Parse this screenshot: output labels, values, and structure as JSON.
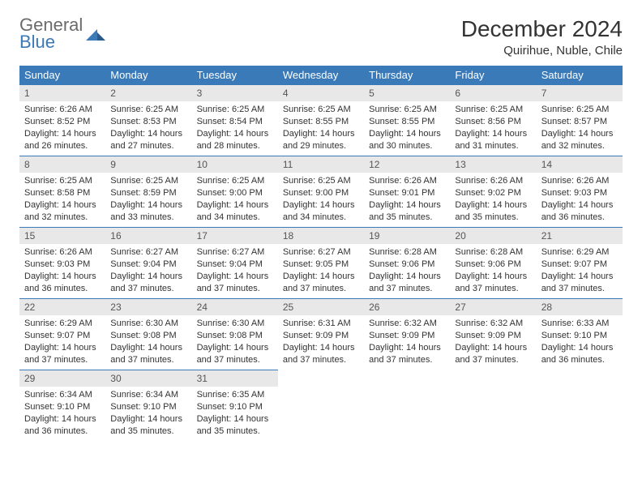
{
  "logo": {
    "general": "General",
    "blue": "Blue"
  },
  "title": "December 2024",
  "location": "Quirihue, Nuble, Chile",
  "colors": {
    "header_bg": "#3a7ab8",
    "header_text": "#ffffff",
    "daynum_bg": "#e8e8e8",
    "border": "#3a7ab8",
    "logo_gray": "#6b6b6b",
    "logo_blue": "#3a7ab8"
  },
  "weekdays": [
    "Sunday",
    "Monday",
    "Tuesday",
    "Wednesday",
    "Thursday",
    "Friday",
    "Saturday"
  ],
  "days": [
    {
      "n": 1,
      "sunrise": "6:26 AM",
      "sunset": "8:52 PM",
      "daylight": "14 hours and 26 minutes."
    },
    {
      "n": 2,
      "sunrise": "6:25 AM",
      "sunset": "8:53 PM",
      "daylight": "14 hours and 27 minutes."
    },
    {
      "n": 3,
      "sunrise": "6:25 AM",
      "sunset": "8:54 PM",
      "daylight": "14 hours and 28 minutes."
    },
    {
      "n": 4,
      "sunrise": "6:25 AM",
      "sunset": "8:55 PM",
      "daylight": "14 hours and 29 minutes."
    },
    {
      "n": 5,
      "sunrise": "6:25 AM",
      "sunset": "8:55 PM",
      "daylight": "14 hours and 30 minutes."
    },
    {
      "n": 6,
      "sunrise": "6:25 AM",
      "sunset": "8:56 PM",
      "daylight": "14 hours and 31 minutes."
    },
    {
      "n": 7,
      "sunrise": "6:25 AM",
      "sunset": "8:57 PM",
      "daylight": "14 hours and 32 minutes."
    },
    {
      "n": 8,
      "sunrise": "6:25 AM",
      "sunset": "8:58 PM",
      "daylight": "14 hours and 32 minutes."
    },
    {
      "n": 9,
      "sunrise": "6:25 AM",
      "sunset": "8:59 PM",
      "daylight": "14 hours and 33 minutes."
    },
    {
      "n": 10,
      "sunrise": "6:25 AM",
      "sunset": "9:00 PM",
      "daylight": "14 hours and 34 minutes."
    },
    {
      "n": 11,
      "sunrise": "6:25 AM",
      "sunset": "9:00 PM",
      "daylight": "14 hours and 34 minutes."
    },
    {
      "n": 12,
      "sunrise": "6:26 AM",
      "sunset": "9:01 PM",
      "daylight": "14 hours and 35 minutes."
    },
    {
      "n": 13,
      "sunrise": "6:26 AM",
      "sunset": "9:02 PM",
      "daylight": "14 hours and 35 minutes."
    },
    {
      "n": 14,
      "sunrise": "6:26 AM",
      "sunset": "9:03 PM",
      "daylight": "14 hours and 36 minutes."
    },
    {
      "n": 15,
      "sunrise": "6:26 AM",
      "sunset": "9:03 PM",
      "daylight": "14 hours and 36 minutes."
    },
    {
      "n": 16,
      "sunrise": "6:27 AM",
      "sunset": "9:04 PM",
      "daylight": "14 hours and 37 minutes."
    },
    {
      "n": 17,
      "sunrise": "6:27 AM",
      "sunset": "9:04 PM",
      "daylight": "14 hours and 37 minutes."
    },
    {
      "n": 18,
      "sunrise": "6:27 AM",
      "sunset": "9:05 PM",
      "daylight": "14 hours and 37 minutes."
    },
    {
      "n": 19,
      "sunrise": "6:28 AM",
      "sunset": "9:06 PM",
      "daylight": "14 hours and 37 minutes."
    },
    {
      "n": 20,
      "sunrise": "6:28 AM",
      "sunset": "9:06 PM",
      "daylight": "14 hours and 37 minutes."
    },
    {
      "n": 21,
      "sunrise": "6:29 AM",
      "sunset": "9:07 PM",
      "daylight": "14 hours and 37 minutes."
    },
    {
      "n": 22,
      "sunrise": "6:29 AM",
      "sunset": "9:07 PM",
      "daylight": "14 hours and 37 minutes."
    },
    {
      "n": 23,
      "sunrise": "6:30 AM",
      "sunset": "9:08 PM",
      "daylight": "14 hours and 37 minutes."
    },
    {
      "n": 24,
      "sunrise": "6:30 AM",
      "sunset": "9:08 PM",
      "daylight": "14 hours and 37 minutes."
    },
    {
      "n": 25,
      "sunrise": "6:31 AM",
      "sunset": "9:09 PM",
      "daylight": "14 hours and 37 minutes."
    },
    {
      "n": 26,
      "sunrise": "6:32 AM",
      "sunset": "9:09 PM",
      "daylight": "14 hours and 37 minutes."
    },
    {
      "n": 27,
      "sunrise": "6:32 AM",
      "sunset": "9:09 PM",
      "daylight": "14 hours and 37 minutes."
    },
    {
      "n": 28,
      "sunrise": "6:33 AM",
      "sunset": "9:10 PM",
      "daylight": "14 hours and 36 minutes."
    },
    {
      "n": 29,
      "sunrise": "6:34 AM",
      "sunset": "9:10 PM",
      "daylight": "14 hours and 36 minutes."
    },
    {
      "n": 30,
      "sunrise": "6:34 AM",
      "sunset": "9:10 PM",
      "daylight": "14 hours and 35 minutes."
    },
    {
      "n": 31,
      "sunrise": "6:35 AM",
      "sunset": "9:10 PM",
      "daylight": "14 hours and 35 minutes."
    }
  ],
  "labels": {
    "sunrise": "Sunrise: ",
    "sunset": "Sunset: ",
    "daylight": "Daylight: "
  }
}
